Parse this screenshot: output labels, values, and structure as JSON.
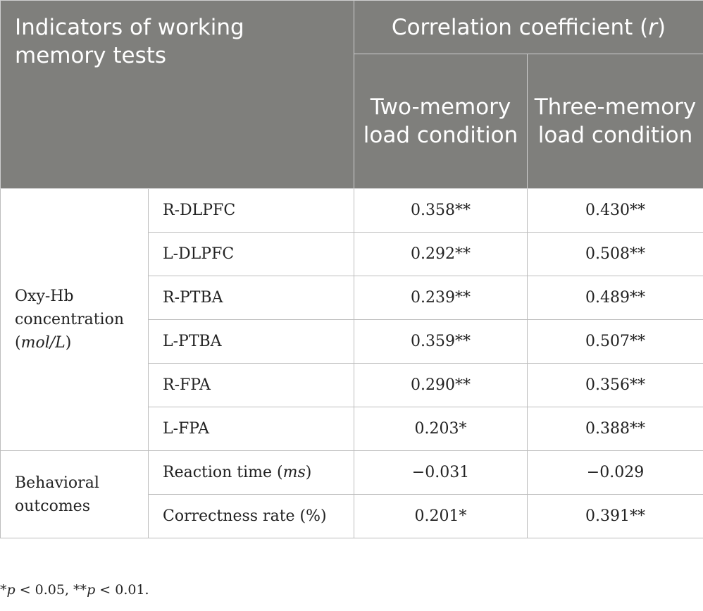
{
  "header": {
    "indicators": "Indicators of working memory tests",
    "correlation_prefix": "Correlation coefficient (",
    "correlation_symbol": "r",
    "correlation_suffix": ")",
    "two_load": "Two-memory load condition",
    "three_load": "Three-memory load condition"
  },
  "groups": {
    "oxy": {
      "line1": "Oxy-Hb",
      "line2": "concentration",
      "unit_open": "(",
      "unit": "mol/L",
      "unit_close": ")"
    },
    "behavioral": {
      "line1": "Behavioral",
      "line2": "outcomes"
    }
  },
  "rows": [
    {
      "label": "R-DLPFC",
      "two": "0.358**",
      "three": "0.430**"
    },
    {
      "label": "L-DLPFC",
      "two": "0.292**",
      "three": "0.508**"
    },
    {
      "label": "R-PTBA",
      "two": "0.239**",
      "three": "0.489**"
    },
    {
      "label": "L-PTBA",
      "two": "0.359**",
      "three": "0.507**"
    },
    {
      "label": "R-FPA",
      "two": "0.290**",
      "three": "0.356**"
    },
    {
      "label": "L-FPA",
      "two": "0.203*",
      "three": "0.388**"
    },
    {
      "label": "Reaction time (",
      "unit": "ms",
      "unit_close": ")",
      "two": "−0.031",
      "three": "−0.029"
    },
    {
      "label": "Correctness rate (%)",
      "two": "0.201*",
      "three": "0.391**"
    }
  ],
  "footnote": {
    "star1": "*",
    "p1": "p",
    "text1": " < 0.05, **",
    "p2": "p",
    "text2": " < 0.01."
  }
}
